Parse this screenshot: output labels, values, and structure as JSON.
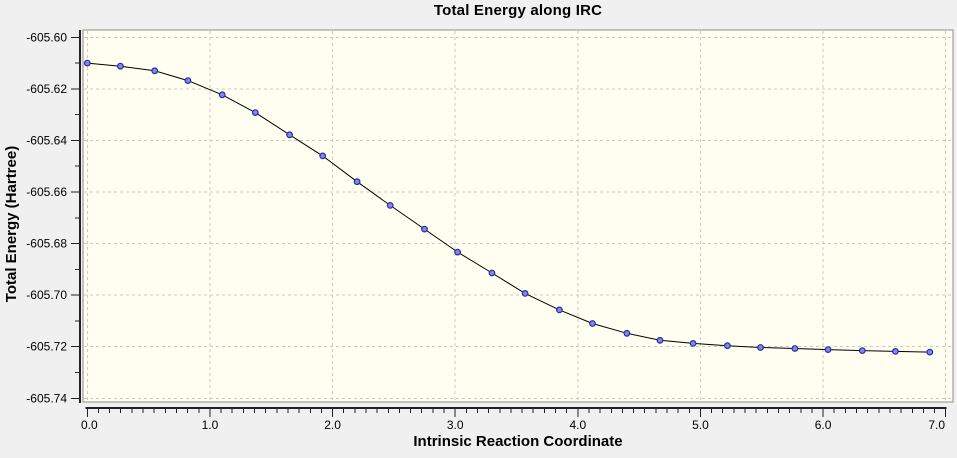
{
  "window": {
    "background_color": "#F0F0F0"
  },
  "chart_data": {
    "type": "line",
    "title": "Total Energy along IRC",
    "xlabel": "Intrinsic Reaction Coordinate",
    "ylabel": "Total Energy (Hartree)",
    "xlim": [
      0.0,
      7.0
    ],
    "ylim": [
      -605.74,
      -605.6
    ],
    "x_major_step": 1.0,
    "x_minor_intervals_per_major": 11,
    "y_major_step": 0.02,
    "y_minor_step": 0.01,
    "grid": "dashed",
    "legend_position": "none",
    "x_tick_labels": [
      "0.0",
      "1.0",
      "2.0",
      "3.0",
      "4.0",
      "5.0",
      "6.0",
      "7.0"
    ],
    "y_tick_labels": [
      "-605.60",
      "-605.62",
      "-605.64",
      "-605.66",
      "-605.68",
      "-605.70",
      "-605.72",
      "-605.74"
    ],
    "series": [
      {
        "marker": "circle",
        "x": [
          0.0,
          0.27,
          0.55,
          0.82,
          1.1,
          1.37,
          1.65,
          1.92,
          2.2,
          2.47,
          2.75,
          3.02,
          3.3,
          3.57,
          3.85,
          4.12,
          4.4,
          4.67,
          4.94,
          5.22,
          5.49,
          5.77,
          6.04,
          6.32,
          6.59,
          6.87
        ],
        "y": [
          -605.61,
          -605.6112,
          -605.613,
          -605.6168,
          -605.6223,
          -605.6292,
          -605.6378,
          -605.646,
          -605.656,
          -605.6652,
          -605.6744,
          -605.6833,
          -605.6914,
          -605.6993,
          -605.7057,
          -605.711,
          -605.7148,
          -605.7175,
          -605.7187,
          -605.7196,
          -605.7203,
          -605.7207,
          -605.7211,
          -605.7215,
          -605.7218,
          -605.7221
        ]
      }
    ],
    "colors": {
      "canvas_background": "#F0F0F0",
      "plot_background": "#FFFEF0",
      "plot_border": "#8C8C8C",
      "grid_line": "#C9C9C9",
      "axis_line": "#222222",
      "tick": "#222222",
      "series_line": "#000000",
      "marker_fill": "#8289DF",
      "marker_stroke": "#2131A6",
      "text": "#000000"
    }
  }
}
